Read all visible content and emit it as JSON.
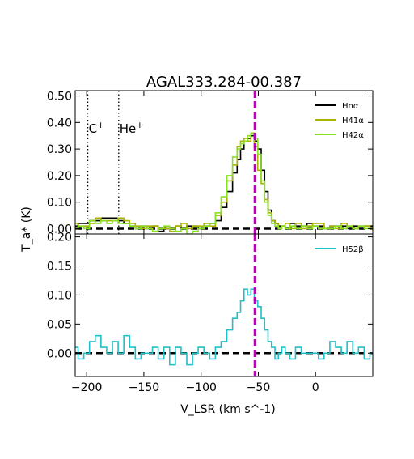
{
  "chart_data": [
    {
      "panel": "top",
      "type": "line",
      "title": "AGAL333.284-00.387",
      "ylabel": "T_a* (K)",
      "xlim": [
        -210,
        50
      ],
      "ylim": [
        -0.02,
        0.52
      ],
      "yticks": [
        0.0,
        0.1,
        0.2,
        0.3,
        0.4,
        0.5
      ],
      "ytick_labels": [
        "0.00",
        "0.10",
        "0.20",
        "0.30",
        "0.40",
        "0.50"
      ],
      "legend": "top-right",
      "vlines": [
        {
          "x": -199,
          "label": "C+",
          "style": "dotted"
        },
        {
          "x": -172,
          "label": "He+",
          "style": "dotted"
        },
        {
          "x": -53,
          "style": "dashed",
          "color": "#bb00bb"
        }
      ],
      "baseline": 0.0,
      "x": [
        -210,
        -205,
        -200,
        -195,
        -190,
        -185,
        -180,
        -175,
        -170,
        -165,
        -160,
        -155,
        -150,
        -145,
        -140,
        -135,
        -130,
        -125,
        -120,
        -115,
        -110,
        -105,
        -100,
        -95,
        -90,
        -85,
        -80,
        -75,
        -70,
        -67,
        -64,
        -61,
        -58,
        -55,
        -52,
        -49,
        -46,
        -43,
        -40,
        -37,
        -34,
        -31,
        -28,
        -25,
        -20,
        -15,
        -10,
        -5,
        0,
        5,
        10,
        15,
        20,
        25,
        30,
        35,
        40,
        45,
        50
      ],
      "series": [
        {
          "name": "Hnα",
          "color": "#000000",
          "values": [
            0.01,
            0.02,
            0.02,
            0.03,
            0.03,
            0.04,
            0.04,
            0.04,
            0.03,
            0.02,
            0.01,
            0.0,
            0.01,
            0.0,
            0.01,
            -0.01,
            0.0,
            0.0,
            0.01,
            0.0,
            0.01,
            0.01,
            0.0,
            0.01,
            0.02,
            0.03,
            0.08,
            0.14,
            0.21,
            0.26,
            0.3,
            0.33,
            0.34,
            0.35,
            0.33,
            0.3,
            0.22,
            0.14,
            0.07,
            0.03,
            0.02,
            0.01,
            0.01,
            0.0,
            0.02,
            0.01,
            0.01,
            0.02,
            0.01,
            0.01,
            0.0,
            0.01,
            0.01,
            0.01,
            0.0,
            0.01,
            0.0,
            0.01,
            0.01
          ]
        },
        {
          "name": "H41α",
          "color": "#aab400",
          "values": [
            0.02,
            0.01,
            0.01,
            0.02,
            0.04,
            0.03,
            0.03,
            0.03,
            0.04,
            0.03,
            0.02,
            0.01,
            0.0,
            0.01,
            0.01,
            0.0,
            0.0,
            -0.01,
            0.01,
            0.02,
            0.0,
            0.01,
            0.01,
            0.02,
            0.01,
            0.05,
            0.1,
            0.18,
            0.24,
            0.31,
            0.33,
            0.34,
            0.33,
            0.36,
            0.31,
            0.22,
            0.17,
            0.11,
            0.06,
            0.03,
            0.02,
            0.0,
            0.01,
            0.02,
            0.0,
            0.02,
            0.0,
            0.01,
            0.02,
            0.02,
            0.0,
            0.01,
            0.0,
            0.02,
            0.01,
            0.0,
            0.01,
            0.01,
            0.0
          ]
        },
        {
          "name": "H42α",
          "color": "#88e020",
          "values": [
            0.0,
            0.01,
            0.0,
            0.03,
            0.02,
            0.03,
            0.02,
            0.03,
            0.02,
            0.02,
            0.01,
            0.0,
            0.01,
            0.0,
            -0.01,
            0.0,
            0.01,
            0.0,
            -0.01,
            0.0,
            -0.02,
            -0.01,
            0.0,
            0.01,
            0.02,
            0.06,
            0.12,
            0.2,
            0.27,
            0.3,
            0.32,
            0.33,
            0.35,
            0.36,
            0.34,
            0.28,
            0.18,
            0.1,
            0.05,
            0.02,
            0.01,
            0.0,
            0.01,
            0.0,
            0.01,
            0.0,
            0.01,
            0.0,
            0.01,
            0.0,
            0.0,
            0.0,
            0.01,
            0.0,
            0.01,
            0.0,
            0.01,
            0.0,
            0.0
          ]
        }
      ]
    },
    {
      "panel": "bottom",
      "type": "line",
      "xlabel": "V_LSR (km s^-1)",
      "xlim": [
        -210,
        50
      ],
      "xticks": [
        -200,
        -150,
        -100,
        -50,
        0
      ],
      "xtick_labels": [
        "−200",
        "−150",
        "−100",
        "−50",
        "0"
      ],
      "ylim": [
        -0.04,
        0.205
      ],
      "yticks": [
        0.0,
        0.05,
        0.1,
        0.15,
        0.2
      ],
      "ytick_labels": [
        "0.00",
        "0.05",
        "0.10",
        "0.15",
        "0.20"
      ],
      "legend": "top-right",
      "vlines": [
        {
          "x": -53,
          "style": "dashed",
          "color": "#bb00bb"
        }
      ],
      "baseline": 0.0,
      "x": [
        -210,
        -205,
        -200,
        -195,
        -190,
        -185,
        -180,
        -175,
        -170,
        -165,
        -160,
        -155,
        -150,
        -145,
        -140,
        -135,
        -130,
        -125,
        -120,
        -115,
        -110,
        -105,
        -100,
        -95,
        -90,
        -85,
        -80,
        -75,
        -70,
        -67,
        -64,
        -61,
        -58,
        -55,
        -52,
        -49,
        -46,
        -43,
        -40,
        -37,
        -34,
        -31,
        -28,
        -25,
        -20,
        -15,
        -10,
        -5,
        0,
        5,
        10,
        15,
        20,
        25,
        30,
        35,
        40,
        45,
        50
      ],
      "series": [
        {
          "name": "H52β",
          "color": "#20c0c8",
          "values": [
            0.01,
            -0.01,
            0.0,
            0.02,
            0.03,
            0.01,
            0.0,
            0.02,
            0.0,
            0.03,
            0.01,
            -0.01,
            0.0,
            0.0,
            0.01,
            -0.01,
            0.01,
            -0.02,
            0.01,
            0.0,
            -0.02,
            0.0,
            0.01,
            0.0,
            -0.01,
            0.01,
            0.02,
            0.04,
            0.06,
            0.07,
            0.09,
            0.11,
            0.1,
            0.11,
            0.09,
            0.08,
            0.06,
            0.04,
            0.02,
            0.01,
            -0.01,
            0.0,
            0.01,
            0.0,
            -0.01,
            0.01,
            0.0,
            0.0,
            0.0,
            -0.01,
            0.0,
            0.02,
            0.01,
            0.0,
            0.02,
            0.0,
            0.01,
            -0.01,
            0.0
          ]
        }
      ]
    }
  ]
}
